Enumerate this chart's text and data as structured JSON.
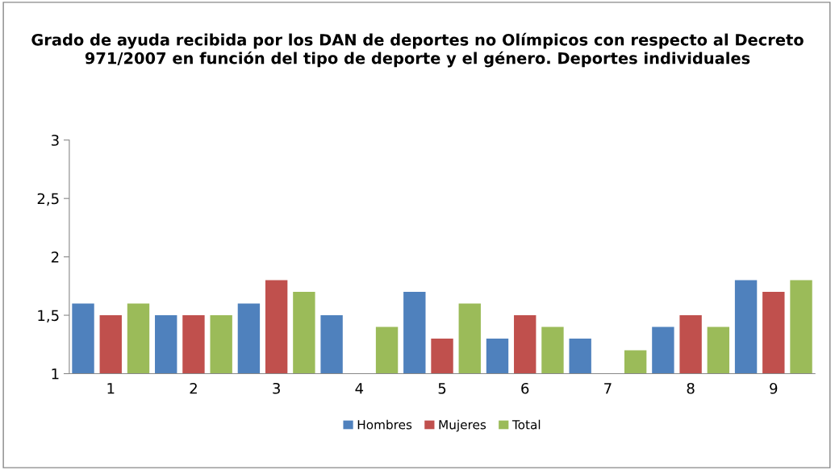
{
  "chart_data": {
    "type": "bar",
    "title": "Grado de ayuda recibida por los DAN de deportes no Olímpicos con respecto al Decreto 971/2007 en función del tipo de deporte y el género. Deportes individuales",
    "categories": [
      "1",
      "2",
      "3",
      "4",
      "5",
      "6",
      "7",
      "8",
      "9"
    ],
    "series": [
      {
        "name": "Hombres",
        "color": "#4f81bd",
        "values": [
          1.6,
          1.5,
          1.6,
          1.5,
          1.7,
          1.3,
          1.3,
          1.4,
          1.8
        ]
      },
      {
        "name": "Mujeres",
        "color": "#c0504d",
        "values": [
          1.5,
          1.5,
          1.8,
          null,
          1.3,
          1.5,
          null,
          1.5,
          1.7
        ]
      },
      {
        "name": "Total",
        "color": "#9bbb59",
        "values": [
          1.6,
          1.5,
          1.7,
          1.4,
          1.6,
          1.4,
          1.2,
          1.4,
          1.8
        ]
      }
    ],
    "ylim": [
      1,
      3
    ],
    "yticks": [
      1,
      {
        "value": 1.5,
        "label": "1,5"
      },
      2,
      {
        "value": 2.5,
        "label": "2,5"
      },
      3
    ],
    "grid": false,
    "legend": "bottom"
  }
}
